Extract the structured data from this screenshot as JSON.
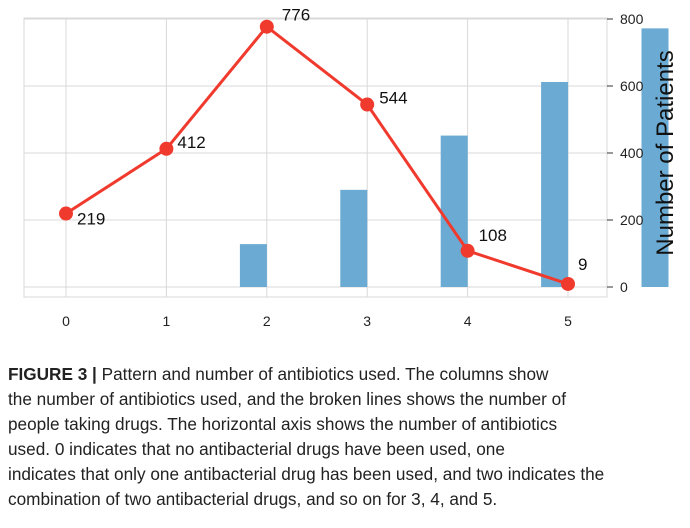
{
  "chart_data": {
    "type": "bar+line",
    "x_categories": [
      "0",
      "1",
      "2",
      "3",
      "4",
      "5"
    ],
    "bar_series": {
      "values": [
        0,
        128,
        290,
        452,
        612,
        772
      ],
      "color": "#6aaad3",
      "axis": "right"
    },
    "line_series": {
      "values": [
        219,
        412,
        776,
        544,
        108,
        9
      ],
      "labels": [
        "219",
        "412",
        "776",
        "544",
        "108",
        "9"
      ],
      "color": "#f03a2e",
      "axis": "left (hidden)"
    },
    "ylabel_right": "Number of Patients",
    "right_axis": {
      "ylim": [
        0,
        800
      ],
      "ticks": [
        0,
        200,
        400,
        600,
        800
      ]
    },
    "left_axis_hidden": {
      "ylim": [
        0,
        790
      ]
    },
    "grid": true,
    "legend": "none"
  },
  "caption": {
    "label": "FIGURE 3 |",
    "lines": [
      "Pattern and number of antibiotics used. The columns show",
      "the number of antibiotics used, and the broken lines shows the number of",
      "people taking drugs. The horizontal axis shows the number of antibiotics",
      "used. 0 indicates that no antibacterial drugs have been used, one",
      "indicates that only one antibacterial drug has been used, and two indicates the",
      "combination of two antibacterial drugs, and so on for 3, 4, and 5."
    ]
  }
}
